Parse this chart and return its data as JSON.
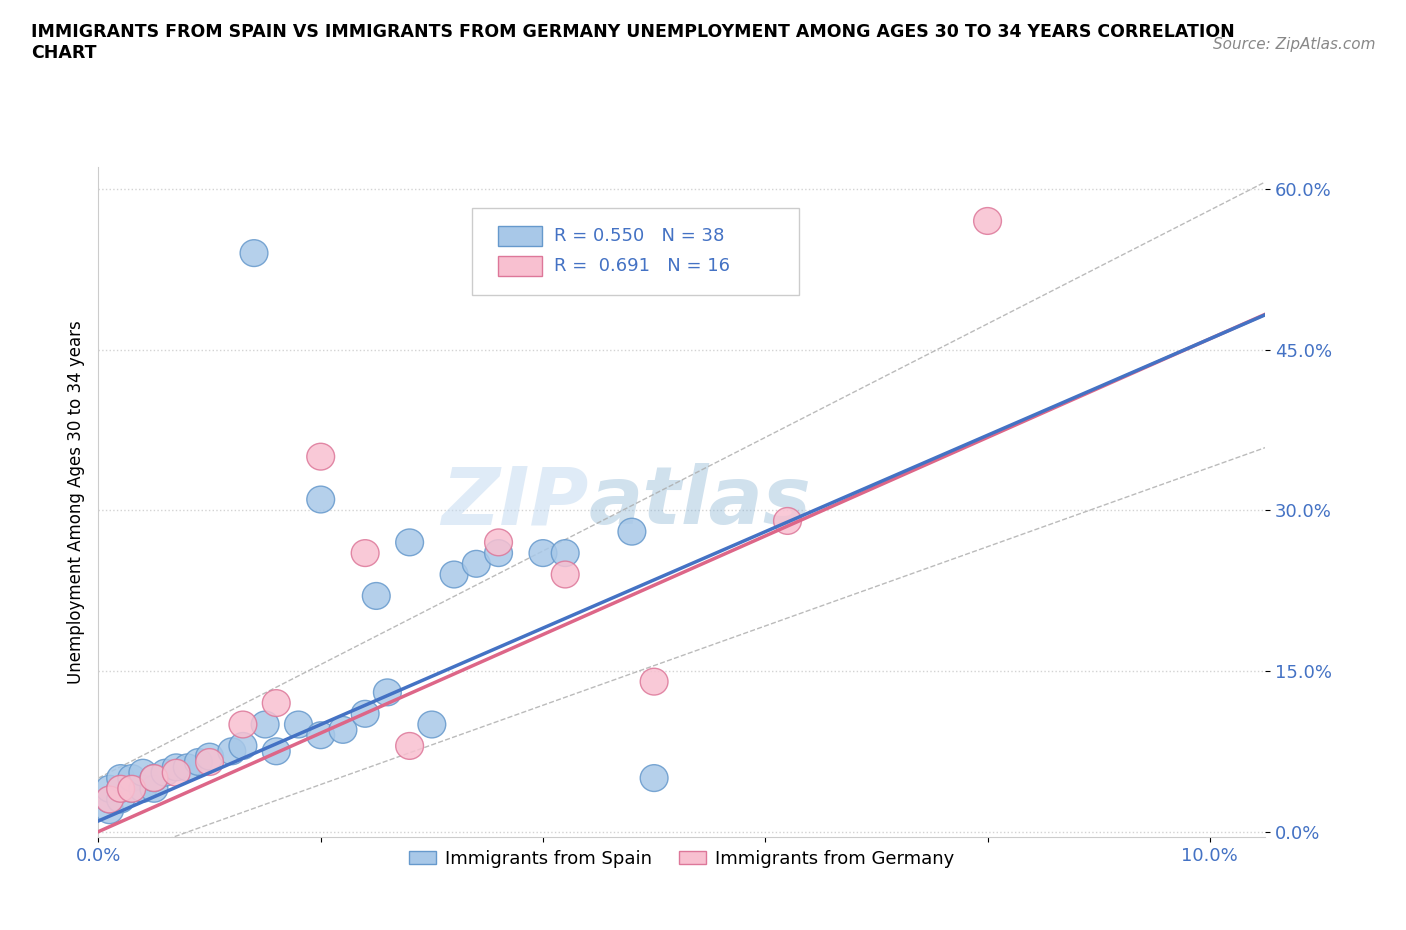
{
  "title": "IMMIGRANTS FROM SPAIN VS IMMIGRANTS FROM GERMANY UNEMPLOYMENT AMONG AGES 30 TO 34 YEARS CORRELATION\nCHART",
  "source_text": "Source: ZipAtlas.com",
  "ylabel": "Unemployment Among Ages 30 to 34 years",
  "xlim": [
    0.0,
    0.105
  ],
  "ylim": [
    -0.005,
    0.62
  ],
  "xticks": [
    0.0,
    0.02,
    0.04,
    0.06,
    0.08,
    0.1
  ],
  "yticks": [
    0.0,
    0.15,
    0.3,
    0.45,
    0.6
  ],
  "xtick_labels": [
    "0.0%",
    "",
    "",
    "",
    "",
    "10.0%"
  ],
  "ytick_labels": [
    "0.0%",
    "15.0%",
    "30.0%",
    "45.0%",
    "60.0%"
  ],
  "watermark_zip": "ZIP",
  "watermark_atlas": "atlas",
  "spain_color": "#a8c8e8",
  "spain_edge_color": "#6699cc",
  "germany_color": "#f8c0d0",
  "germany_edge_color": "#dd7799",
  "spain_line_color": "#4472c4",
  "germany_line_color": "#dd6688",
  "conf_line_color": "#aaaaaa",
  "spain_R": 0.55,
  "spain_N": 38,
  "germany_R": 0.691,
  "germany_N": 16,
  "tick_color": "#4472c4",
  "spain_x": [
    0.001,
    0.001,
    0.001,
    0.002,
    0.002,
    0.002,
    0.003,
    0.003,
    0.004,
    0.004,
    0.005,
    0.005,
    0.006,
    0.007,
    0.008,
    0.009,
    0.01,
    0.012,
    0.013,
    0.015,
    0.016,
    0.018,
    0.02,
    0.022,
    0.024,
    0.026,
    0.03,
    0.032,
    0.034,
    0.036,
    0.04,
    0.042,
    0.048,
    0.05,
    0.02,
    0.025,
    0.028,
    0.014
  ],
  "spain_y": [
    0.02,
    0.03,
    0.04,
    0.03,
    0.04,
    0.05,
    0.04,
    0.05,
    0.04,
    0.055,
    0.04,
    0.05,
    0.055,
    0.06,
    0.06,
    0.065,
    0.07,
    0.075,
    0.08,
    0.1,
    0.075,
    0.1,
    0.09,
    0.095,
    0.11,
    0.13,
    0.1,
    0.24,
    0.25,
    0.26,
    0.26,
    0.26,
    0.28,
    0.05,
    0.31,
    0.22,
    0.27,
    0.54
  ],
  "germany_x": [
    0.001,
    0.002,
    0.003,
    0.005,
    0.007,
    0.01,
    0.013,
    0.016,
    0.02,
    0.024,
    0.028,
    0.036,
    0.042,
    0.05,
    0.062,
    0.08
  ],
  "germany_y": [
    0.03,
    0.04,
    0.04,
    0.05,
    0.055,
    0.065,
    0.1,
    0.12,
    0.35,
    0.26,
    0.08,
    0.27,
    0.24,
    0.14,
    0.29,
    0.57
  ]
}
